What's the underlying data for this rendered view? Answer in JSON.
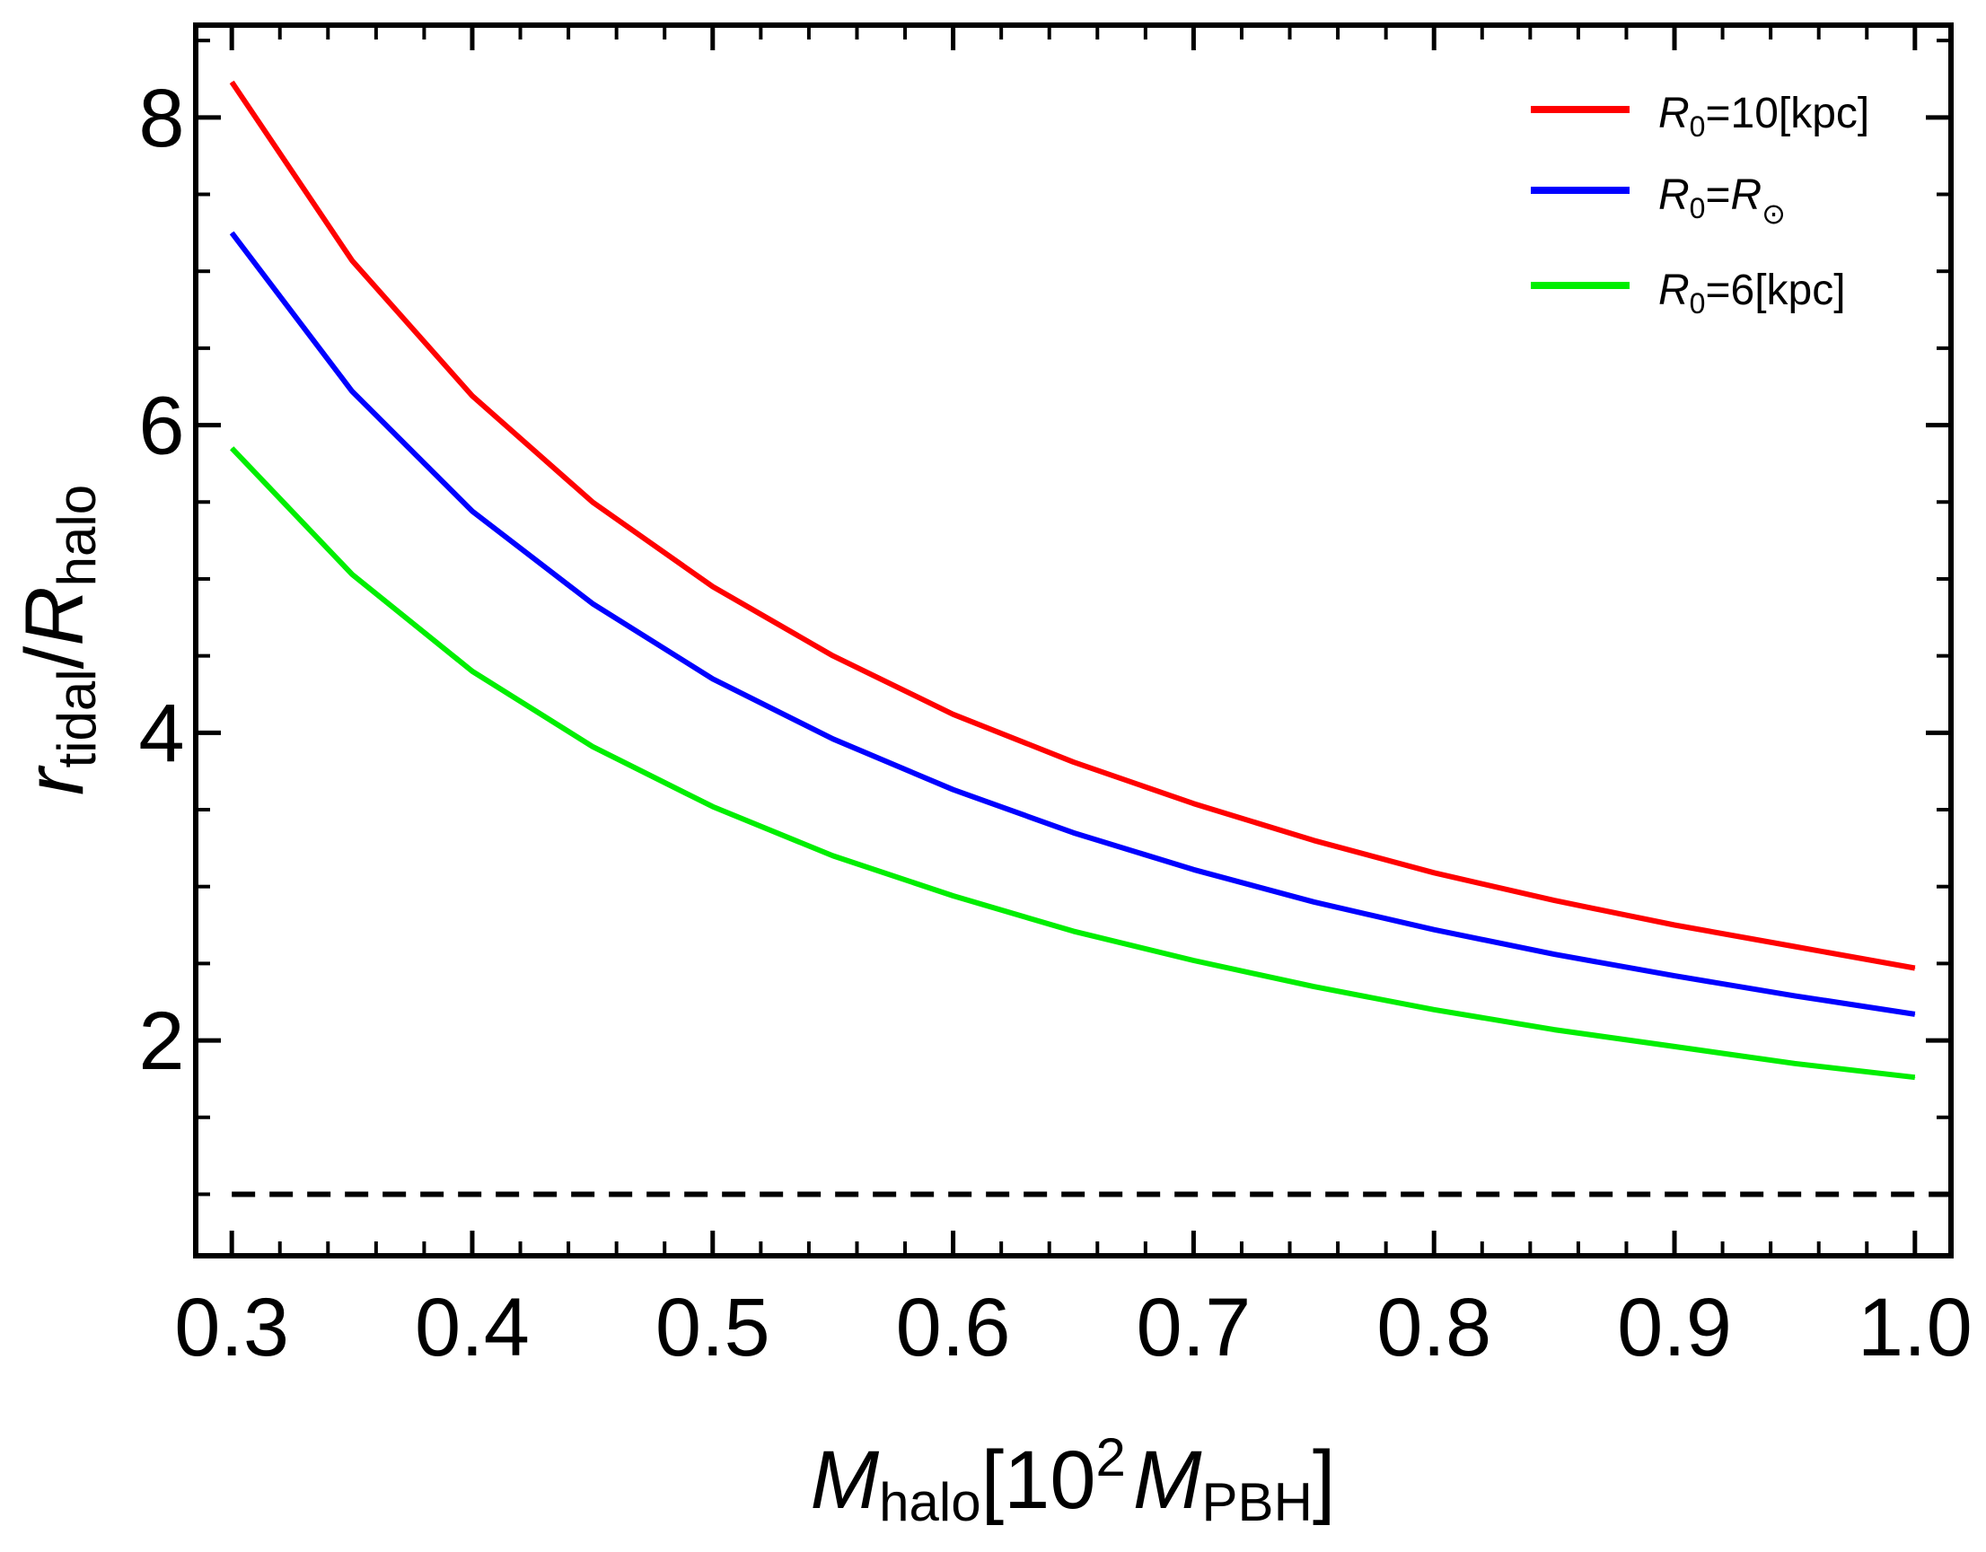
{
  "chart_data": {
    "type": "line",
    "title": "",
    "xlabel": {
      "main": "M",
      "sub": "halo",
      "bracket_open": "[",
      "coef": "10",
      "exp": "2",
      "unit_main": "M",
      "unit_sub": "PBH",
      "bracket_close": "]"
    },
    "ylabel": {
      "main": "r",
      "sub": "tidal",
      "slash": "/",
      "denom_main": "R",
      "denom_sub": "halo"
    },
    "xlim": [
      0.285,
      1.015
    ],
    "ylim": [
      0.6,
      8.6
    ],
    "xticks": [
      0.3,
      0.4,
      0.5,
      0.6,
      0.7,
      0.8,
      0.9,
      1.0
    ],
    "xtick_labels": [
      "0.3",
      "0.4",
      "0.5",
      "0.6",
      "0.7",
      "0.8",
      "0.9",
      "1.0"
    ],
    "yticks": [
      2,
      4,
      6,
      8
    ],
    "ytick_labels": [
      "2",
      "4",
      "6",
      "8"
    ],
    "yminor": [
      1,
      1.5,
      2.5,
      3,
      3.5,
      4.5,
      5,
      5.5,
      6.5,
      7,
      7.5,
      8.5
    ],
    "xminor": [
      0.32,
      0.34,
      0.36,
      0.38,
      0.42,
      0.44,
      0.46,
      0.48,
      0.52,
      0.54,
      0.56,
      0.58,
      0.62,
      0.64,
      0.66,
      0.68,
      0.72,
      0.74,
      0.76,
      0.78,
      0.82,
      0.84,
      0.86,
      0.88,
      0.92,
      0.94,
      0.96,
      0.98
    ],
    "grid": false,
    "legend_position": "top-right",
    "x": [
      0.3,
      0.35,
      0.4,
      0.45,
      0.5,
      0.55,
      0.6,
      0.65,
      0.7,
      0.75,
      0.8,
      0.85,
      0.9,
      0.95,
      1.0
    ],
    "series": [
      {
        "name": "R0=10[kpc]",
        "label_main": "R",
        "label_sub": "0",
        "label_rest": "=10[kpc]",
        "color": "#ff0000",
        "values": [
          8.23,
          7.07,
          6.19,
          5.5,
          4.95,
          4.5,
          4.12,
          3.81,
          3.54,
          3.3,
          3.09,
          2.91,
          2.75,
          2.61,
          2.47
        ]
      },
      {
        "name": "R0=R☉",
        "label_main": "R",
        "label_sub": "0",
        "label_eq": "=",
        "label_main2": "R",
        "label_sub2": "⊙",
        "color": "#0000ff",
        "values": [
          7.25,
          6.22,
          5.44,
          4.84,
          4.35,
          3.96,
          3.63,
          3.35,
          3.11,
          2.9,
          2.72,
          2.56,
          2.42,
          2.29,
          2.17
        ]
      },
      {
        "name": "R0=6[kpc]",
        "label_main": "R",
        "label_sub": "0",
        "label_rest": "=6[kpc]",
        "color": "#00ee00",
        "values": [
          5.85,
          5.03,
          4.4,
          3.91,
          3.52,
          3.2,
          2.94,
          2.71,
          2.52,
          2.35,
          2.2,
          2.07,
          1.96,
          1.85,
          1.76
        ]
      }
    ],
    "reference_line": {
      "y": 1.0,
      "style": "dashed",
      "color": "#000000"
    }
  }
}
